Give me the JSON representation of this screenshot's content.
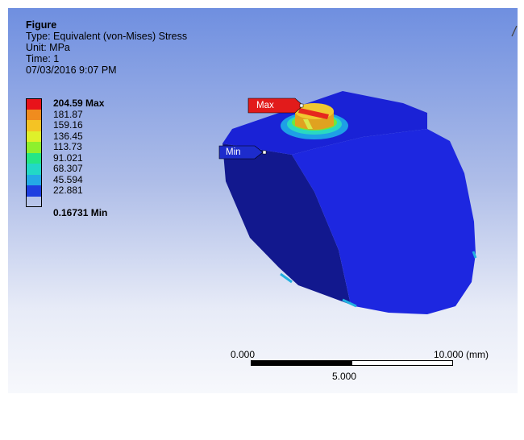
{
  "header": {
    "title": "Figure",
    "type_line": "Type: Equivalent (von-Mises) Stress",
    "unit_line": "Unit: MPa",
    "time_line": "Time: 1",
    "date_line": "07/03/2016 9:07 PM"
  },
  "legend": {
    "max_label": "204.59 Max",
    "values": [
      "181.87",
      "159.16",
      "136.45",
      "113.73",
      "91.021",
      "68.307",
      "45.594",
      "22.881"
    ],
    "min_label": "0.16731 Min",
    "colors": [
      "#e8121a",
      "#f08c1e",
      "#f4c324",
      "#dff02a",
      "#8ef02d",
      "#24e686",
      "#22d8c6",
      "#24a9e6",
      "#1f3fe0"
    ]
  },
  "probes": {
    "max_tag": "Max",
    "min_tag": "Min",
    "max_color": "#e21b1b",
    "min_color": "#1d2ccc"
  },
  "scale": {
    "start": "0.000",
    "mid": "5.000",
    "end": "10.000 (mm)"
  },
  "colors": {
    "body_blue": "#1a22d6",
    "body_dark": "#12188e"
  }
}
